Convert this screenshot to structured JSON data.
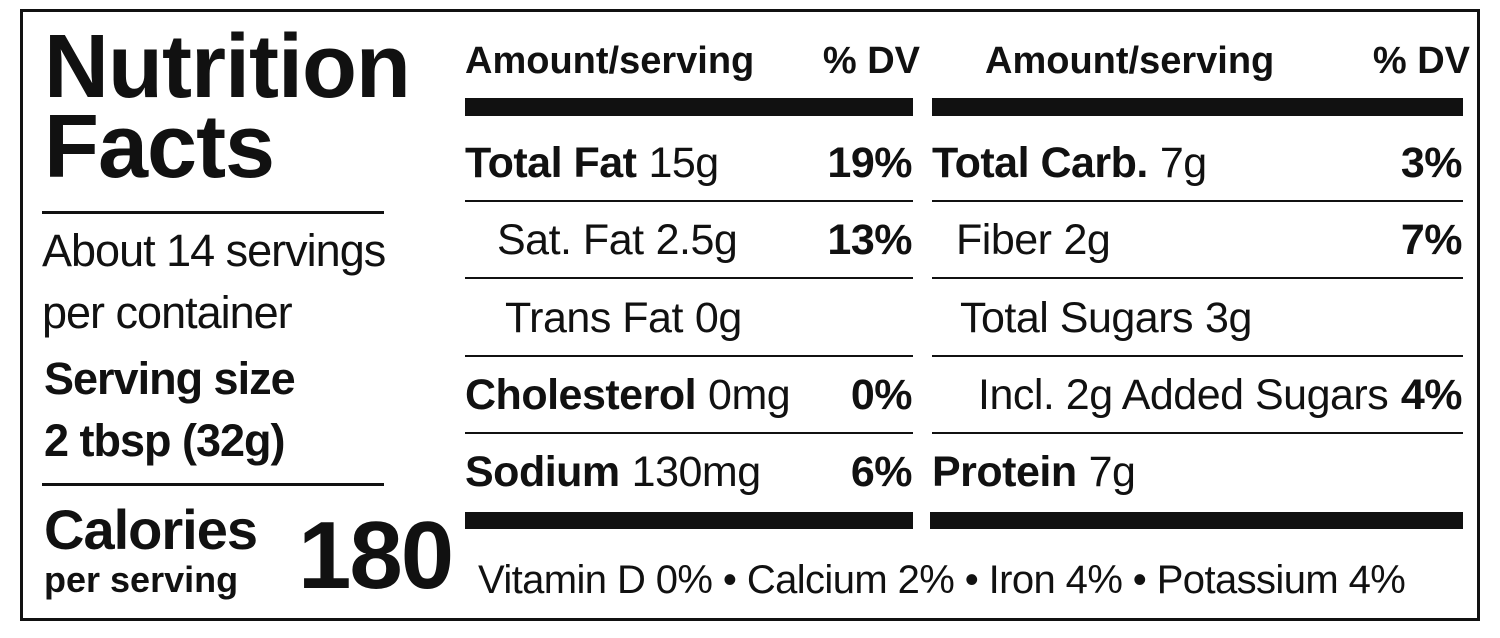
{
  "title_lines": [
    "Nutrition",
    "Facts"
  ],
  "servings_lines": [
    "About 14 servings",
    "per container"
  ],
  "serving_size_label": "Serving size",
  "serving_size": "2 tbsp (32g)",
  "calories_label": "Calories",
  "calories_sublabel": "per serving",
  "calories": 180,
  "columns": [
    {
      "amount_header": "Amount/serving",
      "dv_header": "% DV",
      "rows": [
        {
          "name": "Total Fat",
          "amount": "15g",
          "dv": "19%"
        },
        {
          "name": "Sat. Fat",
          "amount": "2.5g",
          "dv": "13%"
        },
        {
          "name": "Trans Fat",
          "amount": "0g"
        },
        {
          "name": "Cholesterol",
          "amount": "0mg",
          "dv": "0%"
        },
        {
          "name": "Sodium",
          "amount": "130mg",
          "dv": "6%"
        }
      ]
    },
    {
      "amount_header": "Amount/serving",
      "dv_header": "% DV",
      "rows": [
        {
          "name": "Total Carb.",
          "amount": "7g",
          "dv": "3%"
        },
        {
          "name": "Fiber",
          "amount": "2g",
          "dv": "7%"
        },
        {
          "name": "Total Sugars",
          "amount": "3g"
        },
        {
          "name": "Incl. 2g Added Sugars",
          "dv": "4%"
        },
        {
          "name": "Protein",
          "amount": "7g"
        }
      ]
    }
  ],
  "footer": "Vitamin D 0% • Calcium 2% • Iron 4% • Potassium 4%"
}
